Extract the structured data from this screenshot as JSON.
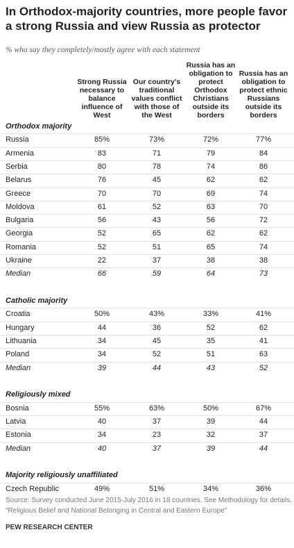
{
  "title": "In Orthodox-majority countries, more people favor a strong Russia and view Russia as protector",
  "subtitle": "% who say they completely/mostly agree with each statement",
  "columns": [
    "Strong Russia necessary to balance influence of West",
    "Our country's traditional values conflict with those of the West",
    "Russia has an obligation to protect Orthodox Christians outside its borders",
    "Russia has an obligation to protect ethnic Russians outside its borders"
  ],
  "groups": [
    {
      "name": "Orthodox majority",
      "rows": [
        {
          "label": "Russia",
          "values": [
            "85%",
            "73%",
            "72%",
            "77%"
          ]
        },
        {
          "label": "Armenia",
          "values": [
            "83",
            "71",
            "79",
            "84"
          ]
        },
        {
          "label": "Serbia",
          "values": [
            "80",
            "78",
            "74",
            "86"
          ]
        },
        {
          "label": "Belarus",
          "values": [
            "76",
            "45",
            "62",
            "62"
          ]
        },
        {
          "label": "Greece",
          "values": [
            "70",
            "70",
            "69",
            "74"
          ]
        },
        {
          "label": "Moldova",
          "values": [
            "61",
            "52",
            "63",
            "70"
          ]
        },
        {
          "label": "Bulgaria",
          "values": [
            "56",
            "43",
            "56",
            "72"
          ]
        },
        {
          "label": "Georgia",
          "values": [
            "52",
            "65",
            "62",
            "62"
          ]
        },
        {
          "label": "Romania",
          "values": [
            "52",
            "51",
            "65",
            "74"
          ]
        },
        {
          "label": "Ukraine",
          "values": [
            "22",
            "37",
            "38",
            "38"
          ]
        }
      ],
      "median": {
        "label": "Median",
        "values": [
          "66",
          "59",
          "64",
          "73"
        ]
      }
    },
    {
      "name": "Catholic majority",
      "rows": [
        {
          "label": "Croatia",
          "values": [
            "50%",
            "43%",
            "33%",
            "41%"
          ]
        },
        {
          "label": "Hungary",
          "values": [
            "44",
            "36",
            "52",
            "62"
          ]
        },
        {
          "label": "Lithuania",
          "values": [
            "34",
            "45",
            "35",
            "41"
          ]
        },
        {
          "label": "Poland",
          "values": [
            "34",
            "52",
            "51",
            "63"
          ]
        }
      ],
      "median": {
        "label": "Median",
        "values": [
          "39",
          "44",
          "43",
          "52"
        ]
      }
    },
    {
      "name": "Religiously mixed",
      "rows": [
        {
          "label": "Bosnia",
          "values": [
            "55%",
            "63%",
            "50%",
            "67%"
          ]
        },
        {
          "label": "Latvia",
          "values": [
            "40",
            "37",
            "39",
            "44"
          ]
        },
        {
          "label": "Estonia",
          "values": [
            "34",
            "23",
            "32",
            "37"
          ]
        }
      ],
      "median": {
        "label": "Median",
        "values": [
          "40",
          "37",
          "39",
          "44"
        ]
      }
    },
    {
      "name": "Majority religiously unaffiliated",
      "rows": [
        {
          "label": "Czech Republic",
          "values": [
            "49%",
            "51%",
            "34%",
            "36%"
          ]
        }
      ]
    }
  ],
  "source": "Source: Survey conducted June 2015-July 2016 in 18 countries. See Methodology for details.",
  "report": "“Religious Belief and National Belonging in Central and Eastern Europe”",
  "footer": "PEW RESEARCH CENTER"
}
